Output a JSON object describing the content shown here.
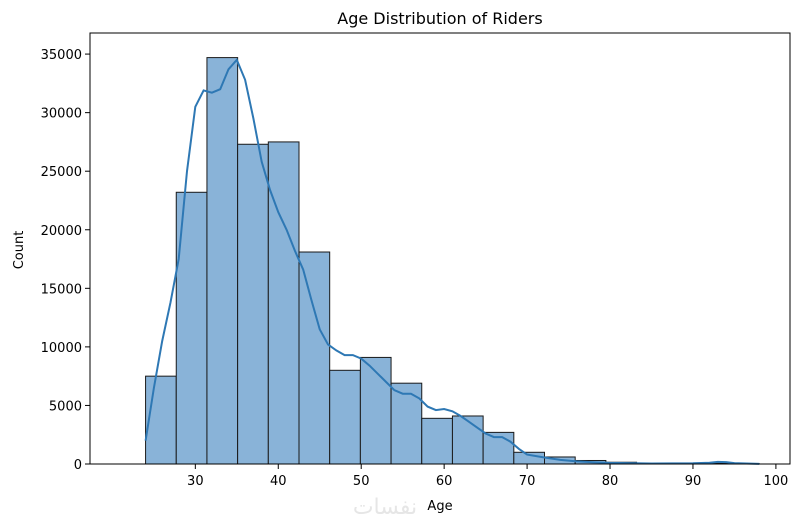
{
  "chart_data": {
    "type": "bar",
    "title": "Age Distribution of Riders",
    "xlabel": "Age",
    "ylabel": "Count",
    "xlim": [
      17.3,
      101.7
    ],
    "ylim": [
      0,
      36800
    ],
    "xticks": [
      30,
      40,
      50,
      60,
      70,
      80,
      90,
      100
    ],
    "yticks": [
      0,
      5000,
      10000,
      15000,
      20000,
      25000,
      30000,
      35000
    ],
    "bins": [
      {
        "x0": 24.0,
        "x1": 27.7,
        "count": 7500
      },
      {
        "x0": 27.7,
        "x1": 31.4,
        "count": 23200
      },
      {
        "x0": 31.4,
        "x1": 35.1,
        "count": 34700
      },
      {
        "x0": 35.1,
        "x1": 38.8,
        "count": 27300
      },
      {
        "x0": 38.8,
        "x1": 42.5,
        "count": 27500
      },
      {
        "x0": 42.5,
        "x1": 46.2,
        "count": 18100
      },
      {
        "x0": 46.2,
        "x1": 49.9,
        "count": 8000
      },
      {
        "x0": 49.9,
        "x1": 53.6,
        "count": 9100
      },
      {
        "x0": 53.6,
        "x1": 57.3,
        "count": 6900
      },
      {
        "x0": 57.3,
        "x1": 61.0,
        "count": 3900
      },
      {
        "x0": 61.0,
        "x1": 64.7,
        "count": 4100
      },
      {
        "x0": 64.7,
        "x1": 68.4,
        "count": 2700
      },
      {
        "x0": 68.4,
        "x1": 72.1,
        "count": 1000
      },
      {
        "x0": 72.1,
        "x1": 75.8,
        "count": 600
      },
      {
        "x0": 75.8,
        "x1": 79.5,
        "count": 300
      },
      {
        "x0": 79.5,
        "x1": 83.2,
        "count": 150
      },
      {
        "x0": 83.2,
        "x1": 86.9,
        "count": 60
      },
      {
        "x0": 86.9,
        "x1": 90.6,
        "count": 30
      },
      {
        "x0": 90.6,
        "x1": 94.3,
        "count": 80
      },
      {
        "x0": 94.3,
        "x1": 98.0,
        "count": 20
      }
    ],
    "kde": {
      "x": [
        24,
        25,
        26,
        27,
        28,
        29,
        30,
        31,
        32,
        33,
        34,
        35,
        36,
        37,
        38,
        39,
        40,
        41,
        42,
        43,
        44,
        45,
        46,
        47,
        48,
        49,
        50,
        51,
        52,
        53,
        54,
        55,
        56,
        57,
        58,
        59,
        60,
        61,
        62,
        63,
        64,
        65,
        66,
        67,
        68,
        69,
        70,
        72,
        74,
        76,
        78,
        80,
        85,
        90,
        92,
        93,
        94,
        95,
        98
      ],
      "y": [
        2000,
        6500,
        10500,
        13800,
        17500,
        25000,
        30500,
        31900,
        31700,
        32000,
        33700,
        34500,
        32800,
        29500,
        25800,
        23400,
        21500,
        20000,
        18200,
        16600,
        14000,
        11500,
        10200,
        9700,
        9300,
        9300,
        9000,
        8400,
        7700,
        7000,
        6300,
        6000,
        6000,
        5600,
        4900,
        4600,
        4700,
        4500,
        4100,
        3600,
        3100,
        2600,
        2300,
        2300,
        1900,
        1300,
        800,
        560,
        350,
        220,
        150,
        90,
        40,
        60,
        110,
        180,
        160,
        80,
        10
      ]
    },
    "colors": {
      "bar_fill": "#89b3d8",
      "bar_edge": "#1a1a1a",
      "kde": "#2e78b4"
    },
    "grid": false,
    "legend": false
  },
  "watermark": "نفسات"
}
